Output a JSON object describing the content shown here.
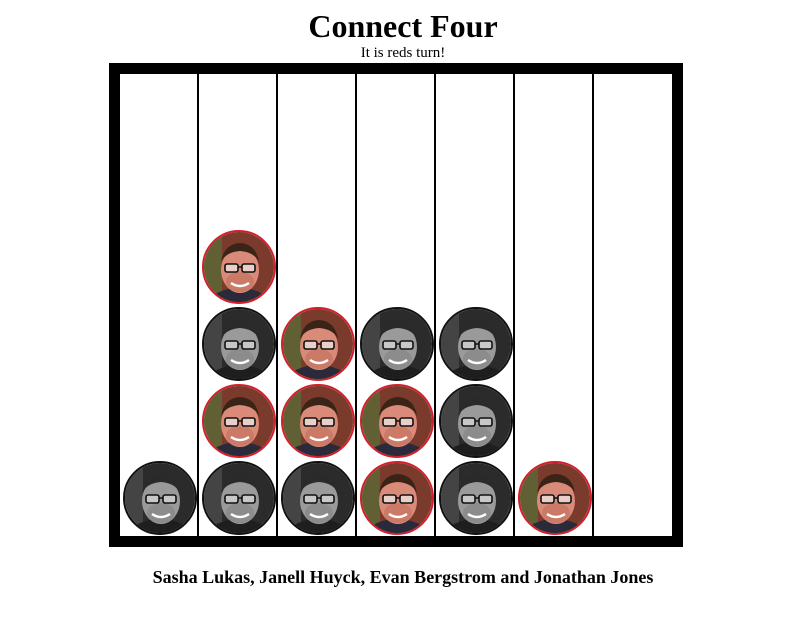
{
  "title": "Connect Four",
  "status": "It is reds turn!",
  "credits": "Sasha Lukas, Janell Huyck, Evan Bergstrom and Jonathan Jones",
  "board": {
    "columns": 7,
    "rows": 6,
    "grid": [
      [
        null,
        null,
        null,
        null,
        null,
        null,
        null
      ],
      [
        null,
        null,
        null,
        null,
        null,
        null,
        null
      ],
      [
        null,
        "red",
        null,
        null,
        null,
        null,
        null
      ],
      [
        null,
        "black",
        "red",
        "black",
        "black",
        null,
        null
      ],
      [
        null,
        "red",
        "red",
        "red",
        "black",
        null,
        null
      ],
      [
        "black",
        "black",
        "black",
        "red",
        "black",
        "red",
        null
      ]
    ]
  },
  "colors": {
    "red_border": "#d21f2b",
    "board": "#000000",
    "background": "#ffffff"
  }
}
